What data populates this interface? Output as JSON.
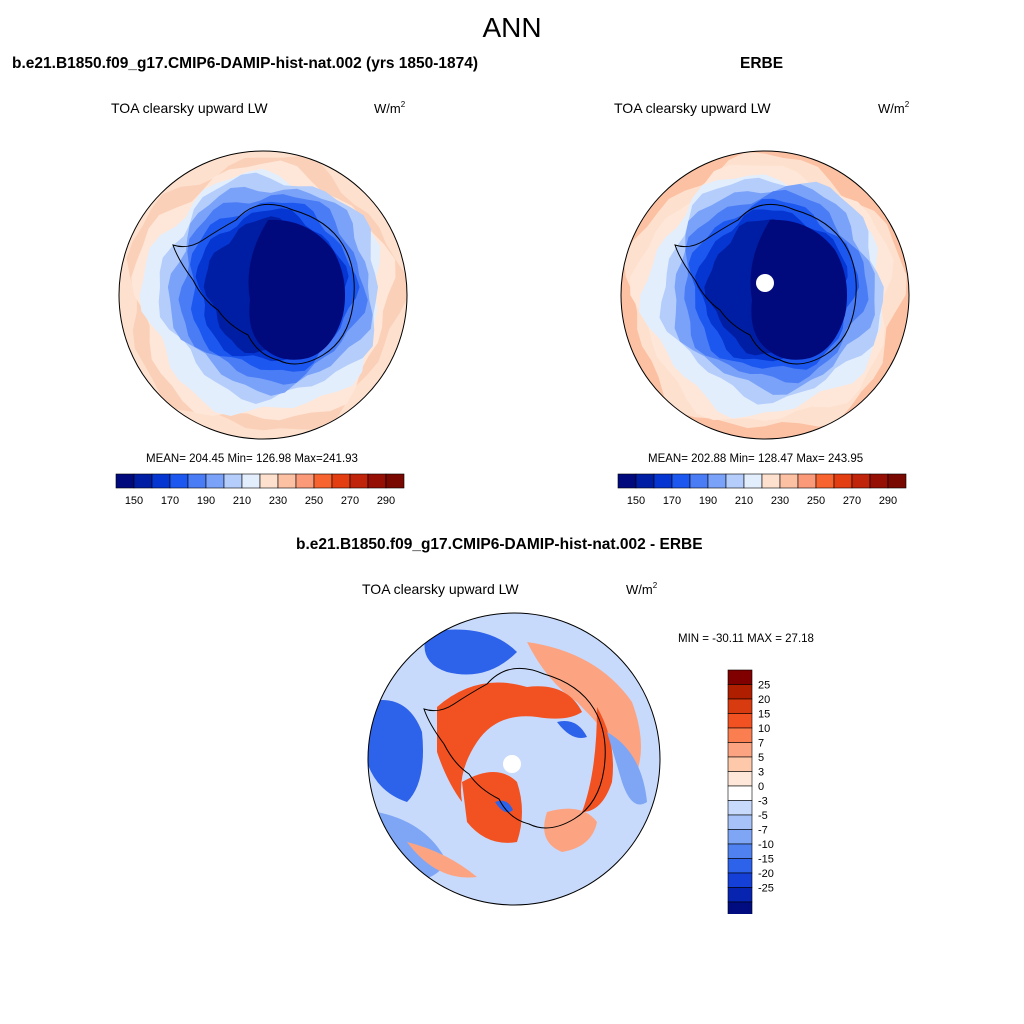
{
  "title": "ANN",
  "panels": [
    {
      "header": "b.e21.B1850.f09_g17.CMIP6-DAMIP-hist-nat.002 (yrs 1850-1874)",
      "variable": "TOA clearsky upward LW",
      "units_base": "W/m",
      "units_exp": "2",
      "stats": "MEAN= 204.45  Min= 126.98  Max=241.93"
    },
    {
      "header": "ERBE",
      "variable": "TOA clearsky upward LW",
      "units_base": "W/m",
      "units_exp": "2",
      "stats": "MEAN= 202.88  Min= 128.47  Max= 243.95"
    },
    {
      "header": "b.e21.B1850.f09_g17.CMIP6-DAMIP-hist-nat.002 - ERBE",
      "variable": "TOA clearsky upward LW",
      "units_base": "W/m",
      "units_exp": "2",
      "stats": "MIN = -30.11 MAX =  27.18"
    }
  ],
  "colorbar_abs": {
    "colors": [
      "#000a7d",
      "#001ea3",
      "#0536d2",
      "#1c58f0",
      "#4a7cf5",
      "#7aa2f8",
      "#b4cdfb",
      "#e3eefd",
      "#fde0cd",
      "#fcc0a3",
      "#fb9a78",
      "#f8642f",
      "#e33d12",
      "#c0240b",
      "#960f05",
      "#780800"
    ],
    "labels": [
      "150",
      "170",
      "190",
      "210",
      "230",
      "250",
      "270",
      "290"
    ]
  },
  "colorbar_diff": {
    "colors": [
      "#800000",
      "#b01e00",
      "#d83b0f",
      "#f25221",
      "#fa7e4f",
      "#fca482",
      "#fdc9aa",
      "#fee7d8",
      "#ffffff",
      "#c8dafb",
      "#a6c2f8",
      "#7ea6f5",
      "#4f82f0",
      "#2d62ea",
      "#1440d8",
      "#0624b0",
      "#000c80"
    ],
    "labels": [
      "25",
      "20",
      "15",
      "10",
      "7",
      "5",
      "3",
      "0",
      "-3",
      "-5",
      "-7",
      "-10",
      "-15",
      "-20",
      "-25"
    ]
  },
  "map_palette": {
    "rings_model": [
      "#fde0cd",
      "#fbd0b8",
      "#fee7d8",
      "#e3eefd",
      "#b4cdfb",
      "#7aa2f8",
      "#4a7cf5",
      "#1c58f0",
      "#0536d2",
      "#001ea3"
    ],
    "rings_obs": [
      "#fcc0a3",
      "#fde0cd",
      "#fee7d8",
      "#e3eefd",
      "#b4cdfb",
      "#7aa2f8",
      "#4a7cf5",
      "#1c58f0",
      "#0536d2",
      "#001ea3"
    ],
    "core": "#000a7d",
    "pole": "#ffffff",
    "diff_base": "#c8dafb",
    "diff_warm": "#f25221",
    "diff_warm_light": "#fca482",
    "diff_cool": "#2d62ea",
    "diff_cool_light": "#7ea6f5"
  }
}
